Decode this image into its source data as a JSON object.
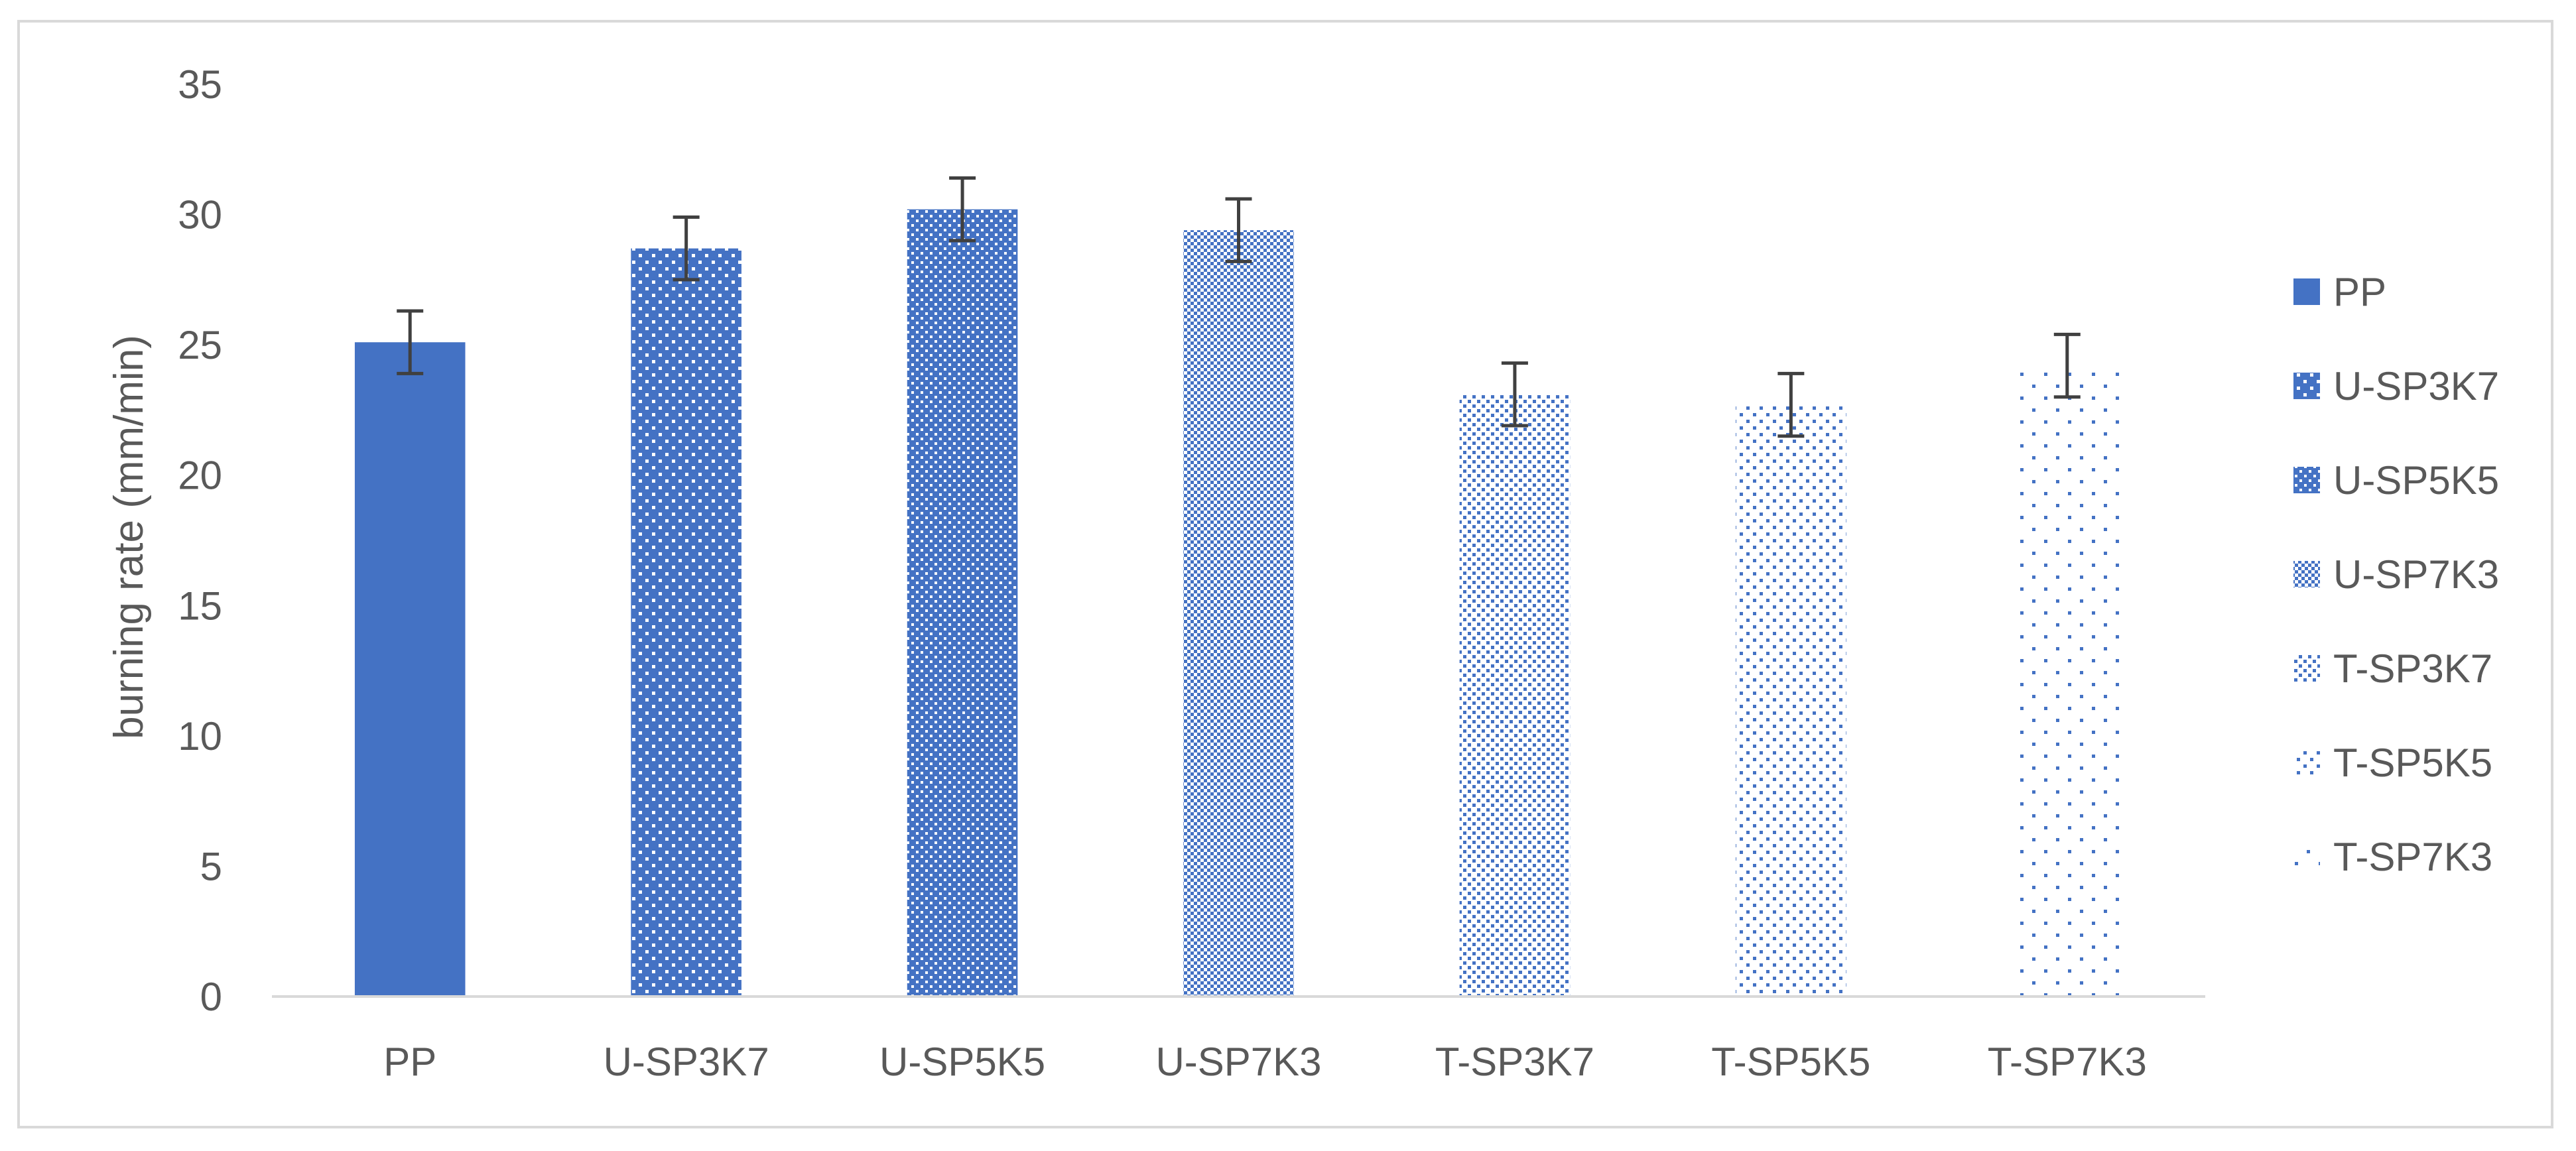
{
  "chart_data": {
    "type": "bar",
    "title": "",
    "xlabel": "",
    "ylabel": "burning rate (mm/min)",
    "ylim": [
      0,
      35
    ],
    "yticks": [
      0,
      5,
      10,
      15,
      20,
      25,
      30,
      35
    ],
    "grid": false,
    "legend_position": "right",
    "categories": [
      "PP",
      "U-SP3K7",
      "U-SP5K5",
      "U-SP7K3",
      "T-SP3K7",
      "T-SP5K5",
      "T-SP7K3"
    ],
    "values": [
      25.1,
      28.7,
      30.2,
      29.4,
      23.1,
      22.7,
      24.2
    ],
    "error": [
      1.2,
      1.2,
      1.2,
      1.2,
      1.2,
      1.2,
      1.2
    ],
    "legend": [
      "PP",
      "U-SP3K7",
      "U-SP5K5",
      "U-SP7K3",
      "T-SP3K7",
      "T-SP5K5",
      "T-SP7K3"
    ],
    "patterns": [
      "solid",
      "dots-sparse-white",
      "dots-dense-white",
      "checker-fine",
      "checker-blue-light",
      "dots-blue-medium",
      "dots-blue-sparse"
    ],
    "colors": {
      "bar": "#4472C4",
      "axis": "#D9D9D9",
      "error_bar": "#404040",
      "text": "#595959",
      "frame": "#D9D9D9"
    }
  }
}
